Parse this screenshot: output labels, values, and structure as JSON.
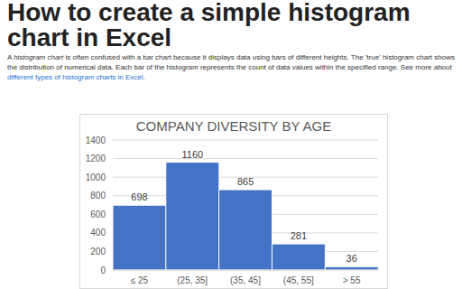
{
  "header": {
    "title": "How to create a simple histogram chart in Excel"
  },
  "intro": {
    "before": "A ",
    "emphasis": "histogram chart",
    "middle": " is often confused with a bar chart because it displays data using bars of different heights. The 'true' histogram chart shows the distribution of numerical data. Each bar of the histogram represents the count of data values within the specified range. See more about ",
    "link": "different types of histogram charts in Excel",
    "after": "."
  },
  "chart_data": {
    "type": "histogram",
    "title": "COMPANY DIVERSITY BY AGE",
    "categories": [
      "≤ 25",
      "(25, 35]",
      "(35, 45]",
      "(45, 55]",
      "> 55"
    ],
    "values": [
      698,
      1160,
      865,
      281,
      36
    ],
    "color": "#4472c4",
    "ylim": [
      0,
      1400
    ],
    "yticks": [
      0,
      200,
      400,
      600,
      800,
      1000,
      1200,
      1400
    ],
    "grid": true,
    "data_labels": true
  }
}
